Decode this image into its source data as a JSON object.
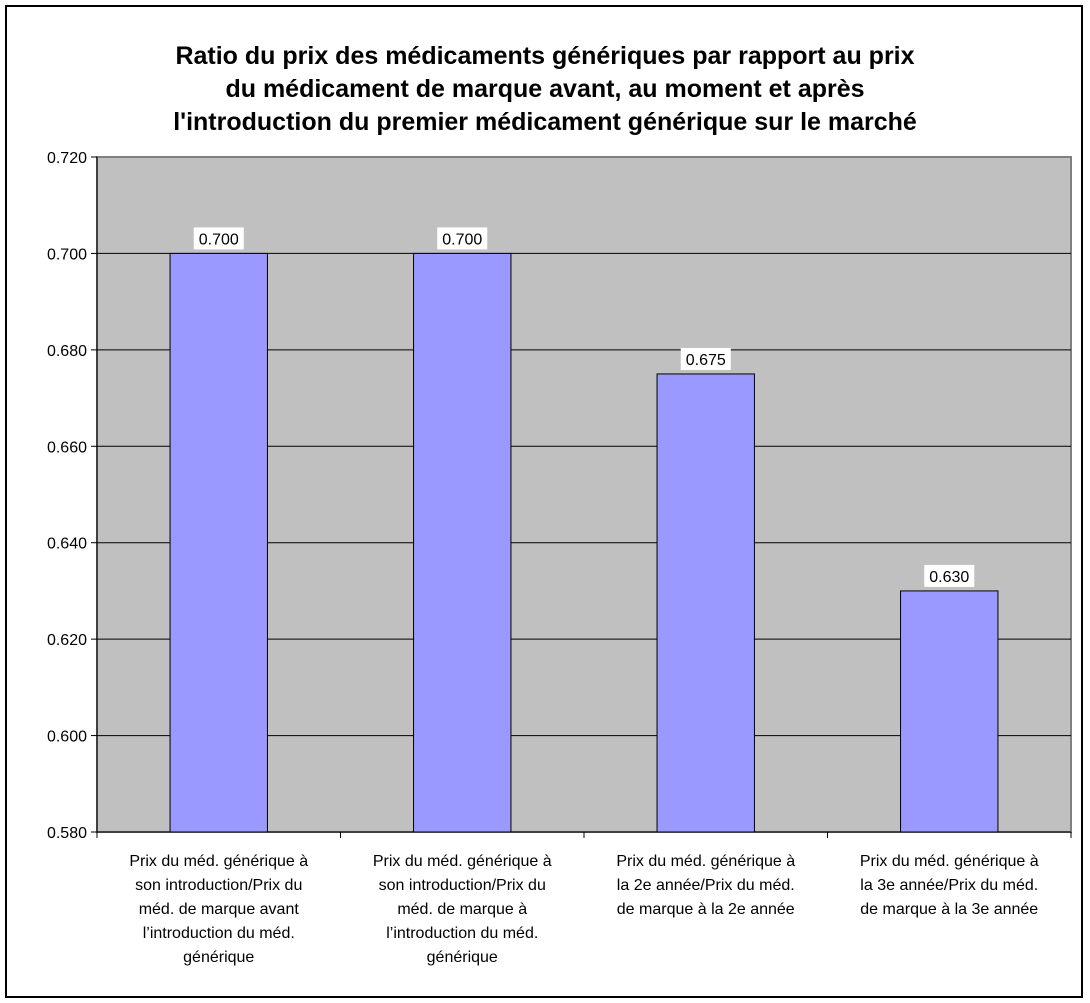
{
  "chart_data": {
    "type": "bar",
    "title_lines": [
      "Ratio du prix des médicaments génériques par rapport au prix",
      "du médicament de marque avant, au moment et après",
      "l'introduction du premier médicament générique sur le marché"
    ],
    "categories": [
      [
        "Prix du méd. générique à",
        "son introduction/Prix du",
        "méd. de marque avant",
        "l’introduction du méd.",
        "générique"
      ],
      [
        "Prix du méd. générique à",
        "son introduction/Prix du",
        "méd. de marque à",
        "l’introduction du méd.",
        "générique"
      ],
      [
        "Prix du méd. générique à",
        "la 2e année/Prix du méd.",
        "de marque à la 2e année"
      ],
      [
        "Prix du méd. générique à",
        "la 3e année/Prix du méd.",
        "de marque à la 3e année"
      ]
    ],
    "values": [
      0.7,
      0.7,
      0.675,
      0.63
    ],
    "data_labels": [
      "0.700",
      "0.700",
      "0.675",
      "0.630"
    ],
    "y_ticks": [
      "0.580",
      "0.600",
      "0.620",
      "0.640",
      "0.660",
      "0.680",
      "0.700",
      "0.720"
    ],
    "ylim": [
      0.58,
      0.72
    ],
    "grid": true,
    "legend": "none",
    "colors": {
      "bar_fill": "#9999ff",
      "bar_stroke": "#000000",
      "plot_background": "#c0c0c0",
      "plot_border": "#808080",
      "gridline": "#000000"
    }
  }
}
